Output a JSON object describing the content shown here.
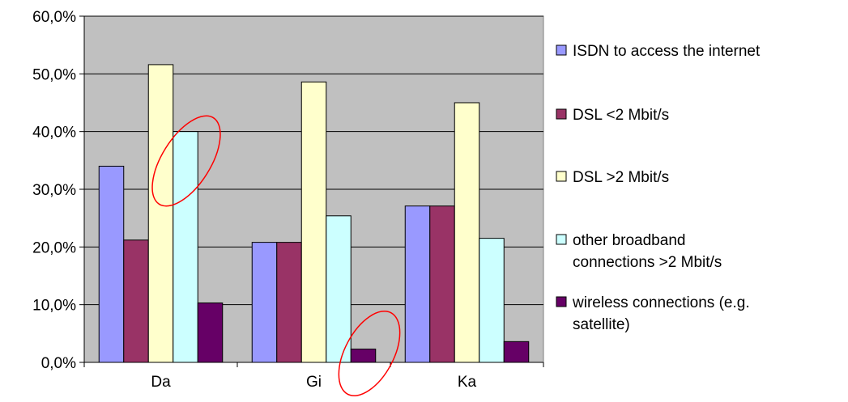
{
  "chart_data": {
    "type": "bar",
    "categories": [
      "Da",
      "Gi",
      "Ka"
    ],
    "y_tick_labels": [
      "0,0%",
      "10,0%",
      "20,0%",
      "30,0%",
      "40,0%",
      "50,0%",
      "60,0%"
    ],
    "ylim": [
      0,
      60
    ],
    "grid": true,
    "plot_background": "#c0c0c0",
    "legend_position": "right",
    "series": [
      {
        "name": "ISDN to access the internet",
        "color": "#9999ff",
        "values": [
          34.0,
          20.8,
          27.1
        ]
      },
      {
        "name": "DSL  <2 Mbit/s",
        "color": "#993366",
        "values": [
          21.2,
          20.8,
          27.1
        ]
      },
      {
        "name": "DSL  >2 Mbit/s",
        "color": "#ffffcc",
        "values": [
          51.6,
          48.6,
          45.0
        ]
      },
      {
        "name": "other broadband connections >2 Mbit/s",
        "color": "#ccffff",
        "values": [
          40.0,
          25.4,
          21.5
        ]
      },
      {
        "name": "wireless connections (e.g. satellite)",
        "color": "#660066",
        "values": [
          10.3,
          2.3,
          3.6
        ]
      }
    ],
    "legend_lines": [
      [
        "ISDN to access the internet"
      ],
      [
        "DSL  <2 Mbit/s"
      ],
      [
        "DSL  >2 Mbit/s"
      ],
      [
        "other broadband",
        "connections >2 Mbit/s"
      ],
      [
        "wireless connections (e.g.",
        "satellite)"
      ]
    ],
    "annotations": [
      {
        "type": "ellipse",
        "color": "#ff0000",
        "near": "Da, other broadband connections >2 Mbit/s"
      },
      {
        "type": "ellipse",
        "color": "#ff0000",
        "near": "Gi, wireless connections (e.g. satellite)"
      }
    ]
  }
}
